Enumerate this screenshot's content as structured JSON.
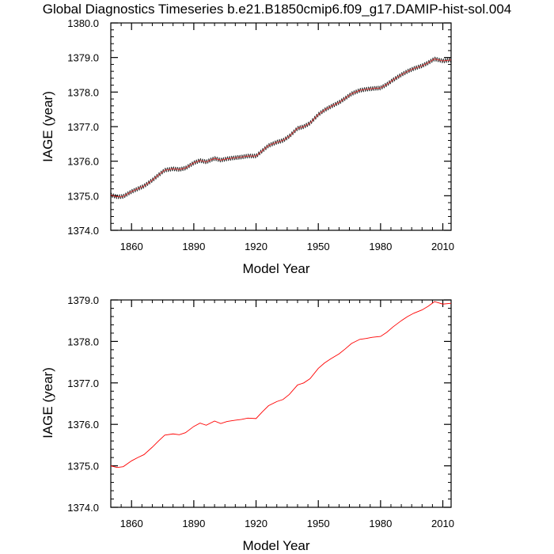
{
  "title": "Global Diagnostics Timeseries b.e21.B1850cmip6.f09_g17.DAMIP-hist-sol.004",
  "colors": {
    "monthly_line": "#000000",
    "smoothed_line": "#ff0000",
    "axes": "#000000",
    "background": "#ffffff"
  },
  "chart_data": [
    {
      "type": "line",
      "xlabel": "Model Year",
      "ylabel": "IAGE (year)",
      "xlim": [
        1850,
        2014
      ],
      "ylim": [
        1374.0,
        1380.0
      ],
      "xticks": [
        1860,
        1890,
        1920,
        1950,
        1980,
        2010
      ],
      "xtick_labels": [
        "1860",
        "1890",
        "1920",
        "1950",
        "1980",
        "2010"
      ],
      "yticks": [
        1374.0,
        1375.0,
        1376.0,
        1377.0,
        1378.0,
        1379.0,
        1380.0
      ],
      "ytick_labels": [
        "1374.0",
        "1375.0",
        "1376.0",
        "1377.0",
        "1378.0",
        "1379.0",
        "1380.0"
      ],
      "grid": false,
      "seasonal_amplitude": 0.06,
      "series": [
        {
          "style": "monthly-black-with-red-smoothed",
          "x": [
            1850,
            1853,
            1856,
            1860,
            1863,
            1866,
            1870,
            1873,
            1876,
            1880,
            1883,
            1886,
            1890,
            1893,
            1896,
            1900,
            1903,
            1906,
            1910,
            1913,
            1916,
            1920,
            1923,
            1926,
            1930,
            1933,
            1936,
            1940,
            1943,
            1946,
            1950,
            1953,
            1956,
            1960,
            1963,
            1966,
            1970,
            1973,
            1976,
            1980,
            1983,
            1986,
            1990,
            1993,
            1996,
            2000,
            2003,
            2006,
            2010,
            2014
          ],
          "values": [
            1375.02,
            1374.97,
            1374.98,
            1375.12,
            1375.2,
            1375.28,
            1375.45,
            1375.6,
            1375.74,
            1375.78,
            1375.76,
            1375.8,
            1375.95,
            1376.02,
            1375.98,
            1376.08,
            1376.03,
            1376.07,
            1376.1,
            1376.12,
            1376.15,
            1376.15,
            1376.3,
            1376.45,
            1376.55,
            1376.6,
            1376.72,
            1376.95,
            1377.0,
            1377.1,
            1377.35,
            1377.48,
            1377.58,
            1377.7,
            1377.82,
            1377.95,
            1378.05,
            1378.08,
            1378.1,
            1378.12,
            1378.22,
            1378.35,
            1378.5,
            1378.6,
            1378.68,
            1378.76,
            1378.85,
            1378.96,
            1378.9,
            1378.93
          ]
        }
      ]
    },
    {
      "type": "line",
      "xlabel": "Model Year",
      "ylabel": "IAGE (year)",
      "xlim": [
        1850,
        2014
      ],
      "ylim": [
        1374.0,
        1379.0
      ],
      "xticks": [
        1860,
        1890,
        1920,
        1950,
        1980,
        2010
      ],
      "xtick_labels": [
        "1860",
        "1890",
        "1920",
        "1950",
        "1980",
        "2010"
      ],
      "yticks": [
        1374.0,
        1375.0,
        1376.0,
        1377.0,
        1378.0,
        1379.0
      ],
      "ytick_labels": [
        "1374.0",
        "1375.0",
        "1376.0",
        "1377.0",
        "1378.0",
        "1379.0"
      ],
      "grid": false,
      "series": [
        {
          "style": "red-line",
          "x": [
            1850,
            1853,
            1856,
            1860,
            1863,
            1866,
            1870,
            1873,
            1876,
            1880,
            1883,
            1886,
            1890,
            1893,
            1896,
            1900,
            1903,
            1906,
            1910,
            1913,
            1916,
            1920,
            1923,
            1926,
            1930,
            1933,
            1936,
            1940,
            1943,
            1946,
            1950,
            1953,
            1956,
            1960,
            1963,
            1966,
            1970,
            1973,
            1976,
            1980,
            1983,
            1986,
            1990,
            1993,
            1996,
            2000,
            2003,
            2006,
            2010,
            2014
          ],
          "values": [
            1375.0,
            1374.96,
            1374.98,
            1375.12,
            1375.2,
            1375.27,
            1375.45,
            1375.6,
            1375.74,
            1375.77,
            1375.75,
            1375.8,
            1375.95,
            1376.03,
            1375.98,
            1376.08,
            1376.02,
            1376.07,
            1376.1,
            1376.12,
            1376.15,
            1376.14,
            1376.3,
            1376.45,
            1376.55,
            1376.6,
            1376.72,
            1376.95,
            1377.0,
            1377.1,
            1377.35,
            1377.48,
            1377.58,
            1377.7,
            1377.82,
            1377.95,
            1378.05,
            1378.07,
            1378.1,
            1378.12,
            1378.22,
            1378.35,
            1378.5,
            1378.6,
            1378.68,
            1378.76,
            1378.85,
            1378.96,
            1378.9,
            1378.92
          ]
        }
      ]
    }
  ]
}
